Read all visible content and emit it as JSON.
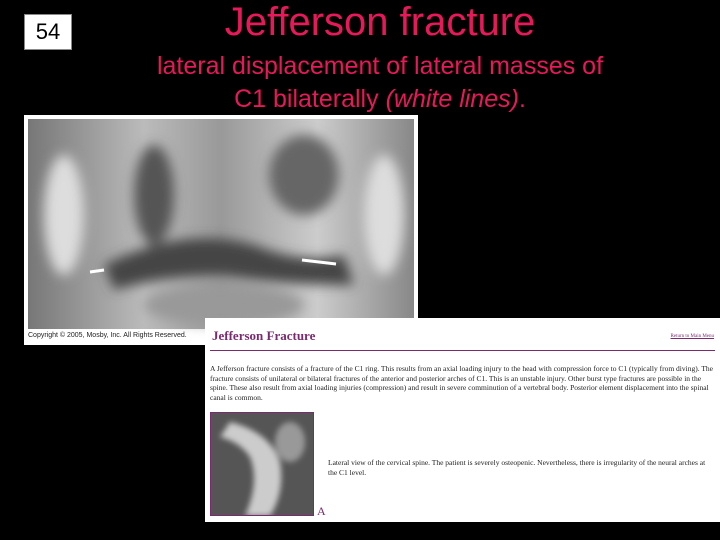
{
  "slide": {
    "number": "54",
    "title": "Jefferson fracture",
    "subtitle": {
      "line1": "lateral displacement of lateral masses of",
      "line2_start": "C1 bilaterally ",
      "line2_italic": "(white lines)",
      "line2_end": "."
    },
    "xray": {
      "copyright": "Copyright © 2005, Mosby, Inc. All Rights Reserved."
    },
    "webpage": {
      "title": "Jefferson Fracture",
      "link": "Return to Main Menu",
      "paragraph": "A Jefferson fracture consists of a fracture of the C1 ring. This results from an axial loading injury to the head with compression force to C1 (typically from diving). The fracture consists of unilateral or bilateral fractures of the anterior and posterior arches of C1. This is an unstable injury. Other burst type fractures are possible in the spine. These also result from axial loading injuries (compression) and result in severe comminution of a vertebral body. Posterior element displacement into the spinal canal is common.",
      "caption": "Lateral view of the cervical spine. The patient is severely osteopenic. Nevertheless, there is irregularity of the neural arches at the C1 level.",
      "figure_label": "A"
    }
  }
}
